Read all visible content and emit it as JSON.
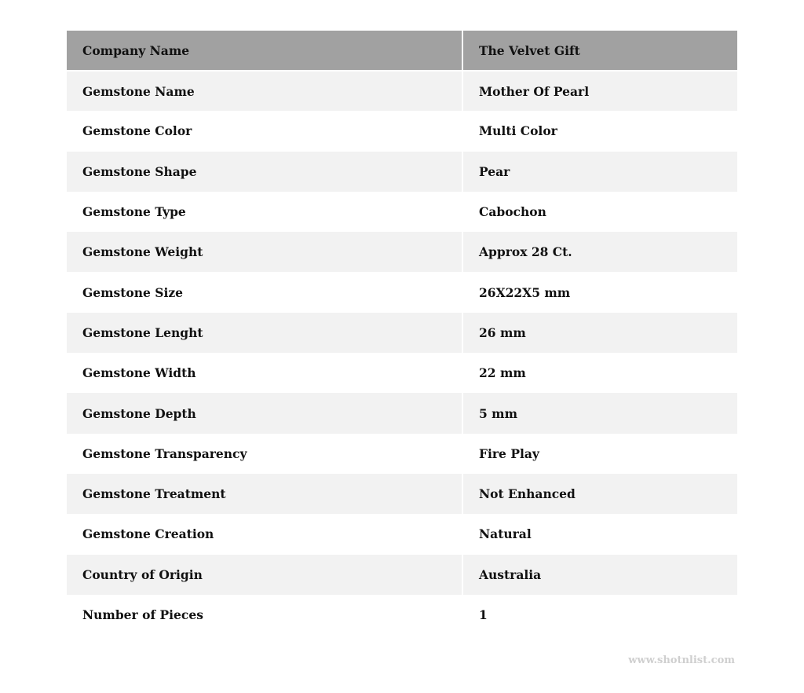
{
  "table": {
    "header": {
      "key": "Company Name",
      "value": "The Velvet Gift"
    },
    "rows": [
      {
        "key": "Gemstone Name",
        "value": "Mother Of Pearl"
      },
      {
        "key": "Gemstone Color",
        "value": "Multi Color"
      },
      {
        "key": "Gemstone Shape",
        "value": "Pear"
      },
      {
        "key": "Gemstone Type",
        "value": "Cabochon"
      },
      {
        "key": "Gemstone Weight",
        "value": "Approx 28 Ct."
      },
      {
        "key": "Gemstone Size",
        "value": "26X22X5 mm"
      },
      {
        "key": "Gemstone Lenght",
        "value": "26 mm"
      },
      {
        "key": "Gemstone Width",
        "value": "22 mm"
      },
      {
        "key": "Gemstone Depth",
        "value": "5 mm"
      },
      {
        "key": "Gemstone Transparency",
        "value": "Fire Play"
      },
      {
        "key": "Gemstone Treatment",
        "value": "Not Enhanced"
      },
      {
        "key": "Gemstone Creation",
        "value": "Natural"
      },
      {
        "key": "Country of Origin",
        "value": "Australia"
      },
      {
        "key": "Number of Pieces",
        "value": "1"
      }
    ]
  },
  "watermark": "www.shotnlist.com",
  "colors": {
    "header_bg": "#a1a1a1",
    "stripe_bg": "#f2f2f2"
  }
}
